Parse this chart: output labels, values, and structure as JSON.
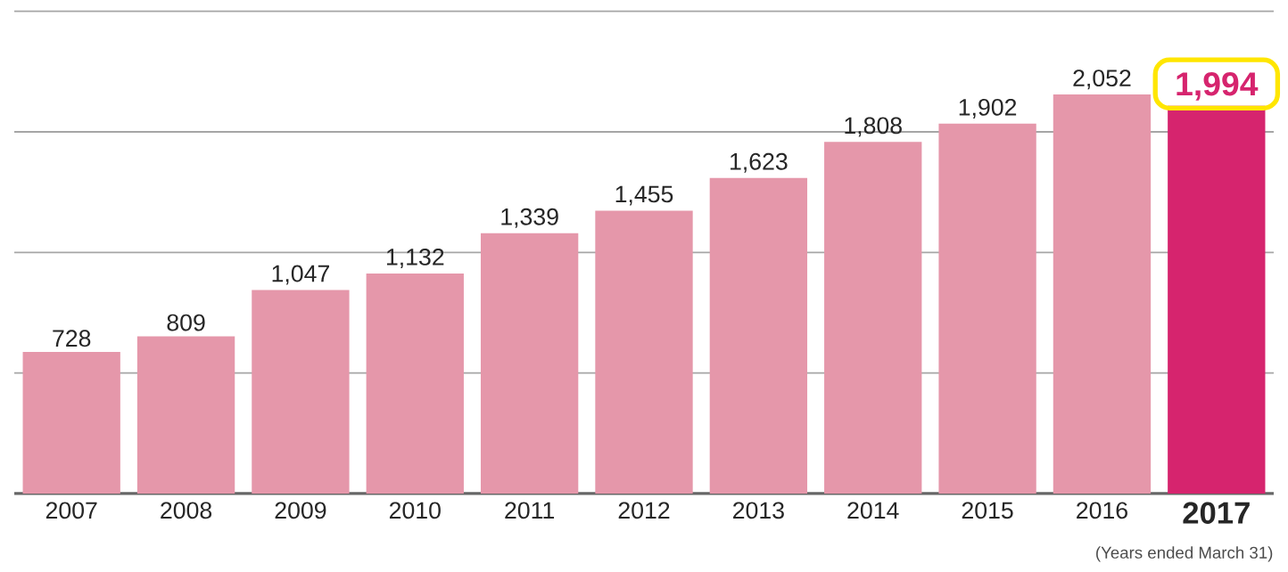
{
  "chart_data": {
    "type": "bar",
    "categories": [
      "2007",
      "2008",
      "2009",
      "2010",
      "2011",
      "2012",
      "2013",
      "2014",
      "2015",
      "2016",
      "2017"
    ],
    "values": [
      728,
      809,
      1047,
      1132,
      1339,
      1455,
      1623,
      1808,
      1902,
      2052,
      1994
    ],
    "value_labels": [
      "728",
      "809",
      "1,047",
      "1,132",
      "1,339",
      "1,455",
      "1,623",
      "1,808",
      "1,902",
      "2,052",
      "1,994"
    ],
    "colors": [
      "#e597aa",
      "#e597aa",
      "#e597aa",
      "#e597aa",
      "#e597aa",
      "#e597aa",
      "#e597aa",
      "#e597aa",
      "#e597aa",
      "#e597aa",
      "#d6246e"
    ],
    "ylim": [
      0,
      2480
    ],
    "yticks": [
      {
        "value": 620,
        "label": null
      },
      {
        "value": 1240,
        "label": null
      },
      {
        "value": 1860,
        "label": null
      },
      {
        "value": 2480,
        "label": null
      }
    ],
    "grid": "y",
    "tick_labels": "x",
    "annotations": [
      "(Years ended March 31)"
    ]
  }
}
